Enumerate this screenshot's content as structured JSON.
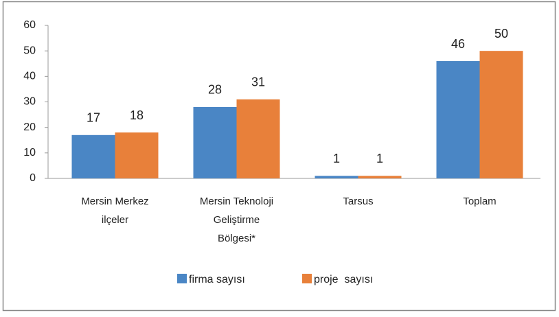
{
  "chart_data": {
    "type": "bar",
    "categories": [
      "Mersin Merkez ilçeler",
      "Mersin Teknoloji Geliştirme Bölgesi*",
      "Tarsus",
      "Toplam"
    ],
    "series": [
      {
        "name": "firma sayısı",
        "color": "#4a86c5",
        "values": [
          17,
          28,
          1,
          46
        ]
      },
      {
        "name": "proje  sayısı",
        "color": "#e8803a",
        "values": [
          18,
          31,
          1,
          50
        ]
      }
    ],
    "ylim": [
      0,
      60
    ],
    "yticks": [
      0,
      10,
      20,
      30,
      40,
      50,
      60
    ],
    "grid": false,
    "legend": "bottom"
  }
}
